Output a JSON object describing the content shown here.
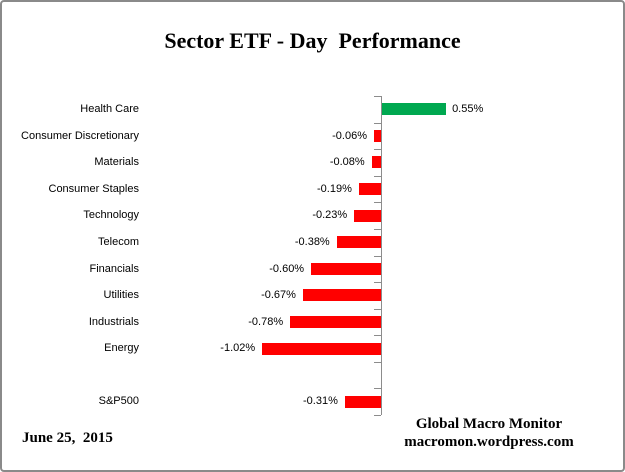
{
  "title": "Sector ETF - Day  Performance",
  "footer": {
    "date": "June 25,  2015",
    "source_line1": "Global Macro Monitor",
    "source_line2": "macromon.wordpress.com"
  },
  "chart_data": {
    "type": "bar",
    "orientation": "horizontal",
    "title": "Sector ETF - Day  Performance",
    "xlabel": "",
    "ylabel": "",
    "grid": false,
    "legend": false,
    "value_format": "percent",
    "categories": [
      "Health Care",
      "Consumer Discretionary",
      "Materials",
      "Consumer Staples",
      "Technology",
      "Telecom",
      "Financials",
      "Utilities",
      "Industrials",
      "Energy",
      "",
      "S&P500"
    ],
    "values": [
      0.55,
      -0.06,
      -0.08,
      -0.19,
      -0.23,
      -0.38,
      -0.6,
      -0.67,
      -0.78,
      -1.02,
      null,
      -0.31
    ],
    "labels": [
      "0.55%",
      "-0.06%",
      "-0.08%",
      "-0.19%",
      "-0.23%",
      "-0.38%",
      "-0.60%",
      "-0.67%",
      "-0.78%",
      "-1.02%",
      "",
      "-0.31%"
    ],
    "colors": {
      "positive": "#00A850",
      "negative": "#FF0000",
      "axis": "#8C8C8C"
    }
  }
}
